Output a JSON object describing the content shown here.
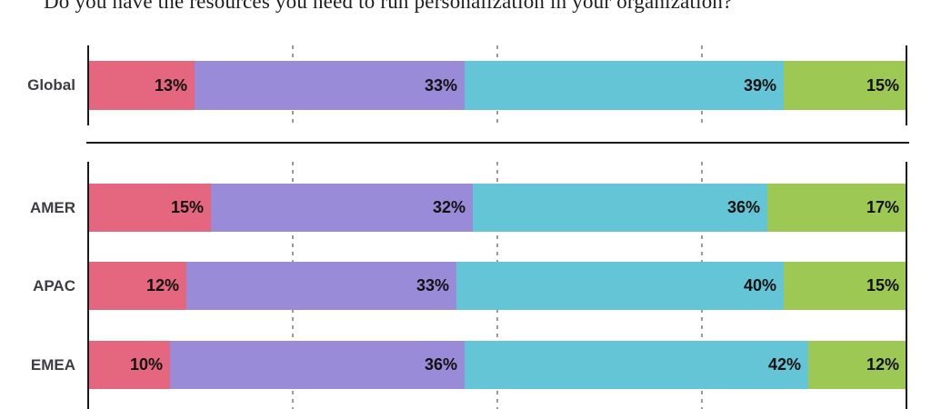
{
  "title": "Do you have the resources you need to run personalization in your organization?",
  "value_suffix": "%",
  "colors": {
    "segments": [
      "#E5677F",
      "#9A8BD8",
      "#63C5D5",
      "#9CC853"
    ],
    "axis": "#1a1a1a",
    "grid": "#9b9b9b",
    "row_label": "#3d3d46",
    "value_label": "#111111"
  },
  "chart_data": {
    "type": "bar",
    "orientation": "horizontal",
    "stacked": true,
    "title": "Do you have the resources you need to run personalization in your organization?",
    "xlabel": "",
    "ylabel": "",
    "xlim": [
      0,
      100
    ],
    "gridlines_percent": [
      25,
      50,
      75
    ],
    "grid_style": "dashed",
    "legend": "none",
    "panels": [
      {
        "name": "global",
        "rows": [
          {
            "label": "Global",
            "values": [
              13,
              33,
              39,
              15
            ]
          }
        ]
      },
      {
        "name": "regions",
        "rows": [
          {
            "label": "AMER",
            "values": [
              15,
              32,
              36,
              17
            ]
          },
          {
            "label": "APAC",
            "values": [
              12,
              33,
              40,
              15
            ]
          },
          {
            "label": "EMEA",
            "values": [
              10,
              36,
              42,
              12
            ]
          }
        ]
      }
    ]
  }
}
